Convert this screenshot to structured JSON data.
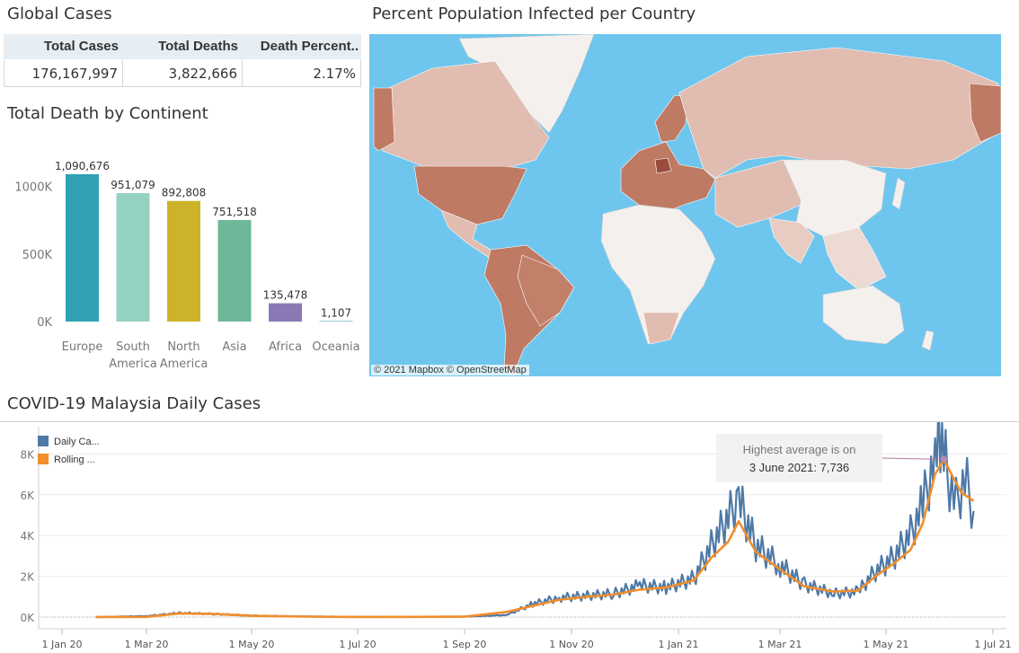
{
  "global_cases": {
    "title": "Global Cases",
    "headers": [
      "Total Cases",
      "Total Deaths",
      "Death Percent.."
    ],
    "values": [
      "176,167,997",
      "3,822,666",
      "2.17%"
    ]
  },
  "continent_deaths": {
    "title": "Total Death by Continent",
    "bar_colors": [
      "#2fa1b3",
      "#95d1c1",
      "#cdb32a",
      "#6db899",
      "#8a78b5",
      "#3b99b0"
    ]
  },
  "map_panel": {
    "title": "Percent Population Infected per Country",
    "attribution": "© 2021 Mapbox  © OpenStreetMap",
    "colors": {
      "ocean": "#6ec6ee",
      "low": "#f4f0ee",
      "mid": "#e1bcb0",
      "high": "#bf7a64",
      "max": "#9a4c3c"
    }
  },
  "malaysia": {
    "title": "COVID-19 Malaysia Daily Cases",
    "legend": [
      "Daily Ca...",
      "Rolling ..."
    ],
    "annotation_line1": "Highest average is on",
    "annotation_line2": "3 June 2021: 7,736",
    "colors": {
      "daily": "#4e79a7",
      "rolling": "#f28e2b"
    }
  },
  "chart_data": [
    {
      "type": "bar",
      "title": "Total Death by Continent",
      "categories": [
        "Europe",
        "South America",
        "North America",
        "Asia",
        "Africa",
        "Oceania"
      ],
      "category_lines": [
        [
          "Europe"
        ],
        [
          "South",
          "America"
        ],
        [
          "North",
          "America"
        ],
        [
          "Asia"
        ],
        [
          "Africa"
        ],
        [
          "Oceania"
        ]
      ],
      "values": [
        1090676,
        951079,
        892808,
        751518,
        135478,
        1107
      ],
      "value_labels": [
        "1,090,676",
        "951,079",
        "892,808",
        "751,518",
        "135,478",
        "1,107"
      ],
      "yticks": [
        "0K",
        "500K",
        "1000K"
      ],
      "ylim": [
        0,
        1250000
      ]
    },
    {
      "type": "line",
      "title": "COVID-19 Malaysia Daily Cases",
      "x_ticks": [
        "1 Jan 20",
        "1 Mar 20",
        "1 May 20",
        "1 Jul 20",
        "1 Sep 20",
        "1 Nov 20",
        "1 Jan 21",
        "1 Mar 21",
        "1 May 21",
        "1 Jul 21"
      ],
      "y_ticks": [
        "0K",
        "2K",
        "4K",
        "6K",
        "8K"
      ],
      "ylim": [
        0,
        9000
      ],
      "series": [
        {
          "name": "Daily Ca...",
          "dates": [
            "2020-01-25",
            "2020-03-01",
            "2020-03-20",
            "2020-04-10",
            "2020-05-01",
            "2020-06-01",
            "2020-07-01",
            "2020-08-01",
            "2020-09-01",
            "2020-09-25",
            "2020-10-10",
            "2020-10-25",
            "2020-11-10",
            "2020-11-25",
            "2020-12-10",
            "2020-12-25",
            "2021-01-10",
            "2021-01-20",
            "2021-01-30",
            "2021-02-05",
            "2021-02-15",
            "2021-02-28",
            "2021-03-15",
            "2021-04-01",
            "2021-04-15",
            "2021-04-25",
            "2021-05-05",
            "2021-05-15",
            "2021-05-22",
            "2021-05-29",
            "2021-06-01",
            "2021-06-05",
            "2021-06-10",
            "2021-06-15",
            "2021-06-20"
          ],
          "values": [
            0,
            50,
            200,
            150,
            70,
            30,
            10,
            15,
            20,
            100,
            650,
            950,
            1050,
            1150,
            1550,
            1450,
            1900,
            3500,
            4900,
            5750,
            3500,
            2600,
            1600,
            1150,
            1250,
            2250,
            2900,
            4100,
            5500,
            7900,
            9100,
            7000,
            5600,
            6800,
            5200
          ]
        },
        {
          "name": "Rolling ...",
          "dates": [
            "2020-01-25",
            "2020-03-01",
            "2020-03-20",
            "2020-04-10",
            "2020-05-01",
            "2020-06-01",
            "2020-07-01",
            "2020-08-01",
            "2020-09-01",
            "2020-09-25",
            "2020-10-10",
            "2020-10-25",
            "2020-11-10",
            "2020-11-25",
            "2020-12-10",
            "2020-12-25",
            "2021-01-10",
            "2021-01-20",
            "2021-01-30",
            "2021-02-05",
            "2021-02-15",
            "2021-02-28",
            "2021-03-15",
            "2021-04-01",
            "2021-04-15",
            "2021-04-25",
            "2021-05-05",
            "2021-05-15",
            "2021-05-22",
            "2021-05-29",
            "2021-06-03",
            "2021-06-08",
            "2021-06-13",
            "2021-06-20"
          ],
          "values": [
            0,
            10,
            180,
            150,
            60,
            20,
            5,
            10,
            20,
            250,
            550,
            850,
            1000,
            1100,
            1350,
            1450,
            1800,
            2900,
            3700,
            4700,
            3200,
            2400,
            1500,
            1250,
            1300,
            2000,
            2600,
            3300,
            4600,
            7000,
            7736,
            6900,
            6100,
            5700
          ]
        }
      ]
    }
  ]
}
